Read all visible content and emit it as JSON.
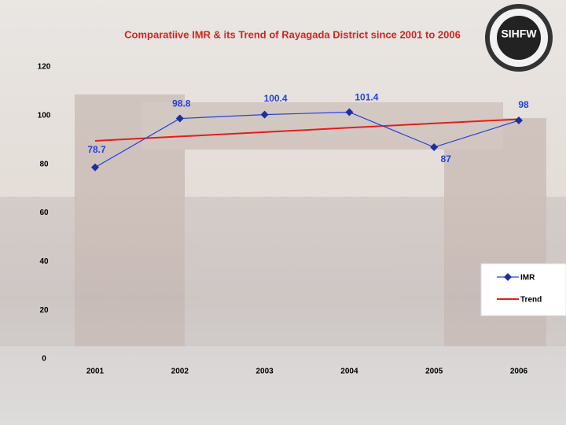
{
  "chart_data": {
    "type": "line",
    "title": "Comparatiive IMR & its Trend of Rayagada District since 2001 to 2006",
    "logo": "SIHFW",
    "categories": [
      "2001",
      "2002",
      "2003",
      "2004",
      "2005",
      "2006"
    ],
    "series": [
      {
        "name": "IMR",
        "color": "#2442d8",
        "values": [
          78.7,
          98.8,
          100.4,
          101.4,
          87,
          98
        ]
      },
      {
        "name": "Trend",
        "color": "#e0201c",
        "values": [
          89.6,
          91.4,
          93.2,
          95.0,
          96.8,
          98.5
        ]
      }
    ],
    "labeled_series": 0,
    "ylim": [
      0,
      120
    ],
    "yticks": [
      0,
      20,
      40,
      60,
      80,
      100,
      120
    ],
    "grid": false,
    "legend": "right"
  }
}
